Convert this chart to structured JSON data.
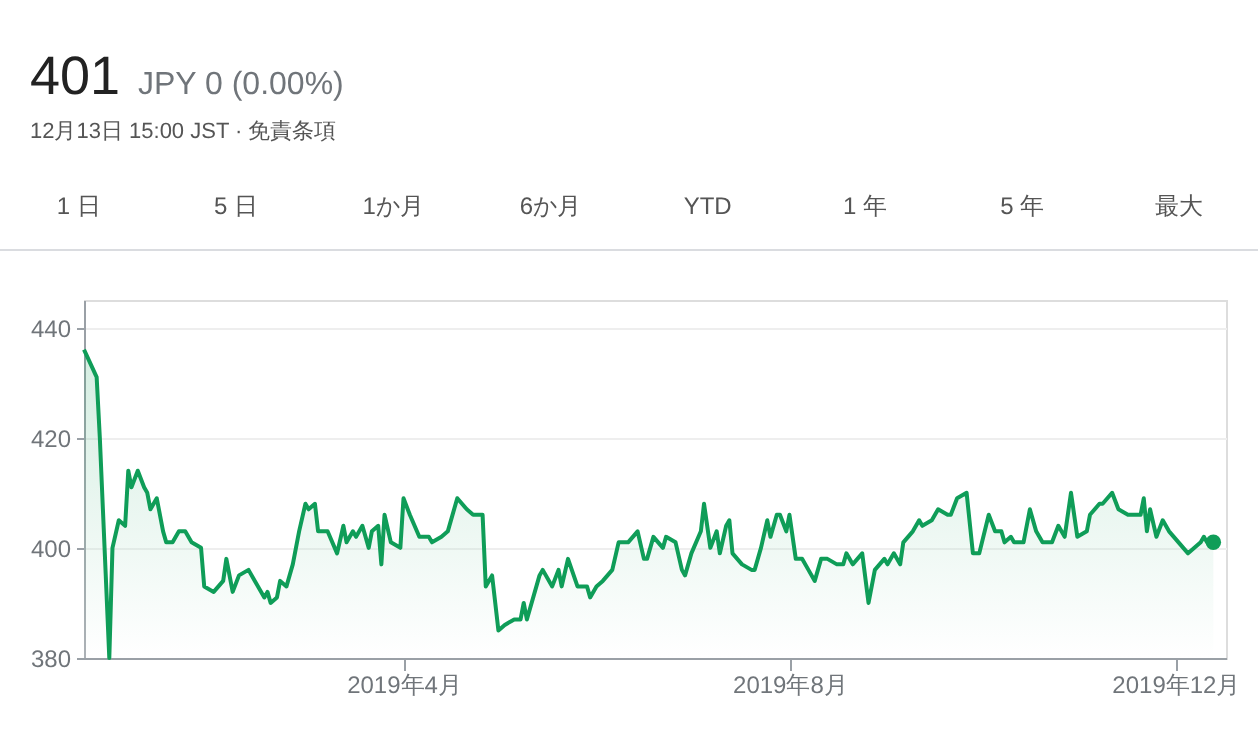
{
  "chart_data": {
    "type": "area",
    "title": "401",
    "subtitle": "JPY 0 (0.00%)",
    "annotations": [
      "12月13日 15:00 JST · 免責条項",
      "1 日",
      "5 日",
      "1か月",
      "6か月",
      "YTD",
      "1 年",
      "5 年",
      "最大"
    ],
    "x": [
      "2018-12-21",
      "2018-12-25",
      "2018-12-26",
      "2018-12-29",
      "2018-12-30",
      "2019-01-01",
      "2019-01-03",
      "2019-01-04",
      "2019-01-05",
      "2019-01-07",
      "2019-01-09",
      "2019-01-10",
      "2019-01-11",
      "2019-01-13",
      "2019-01-15",
      "2019-01-16",
      "2019-01-18",
      "2019-01-20",
      "2019-01-22",
      "2019-01-24",
      "2019-01-27",
      "2019-01-28",
      "2019-01-31",
      "2019-02-03",
      "2019-02-04",
      "2019-02-06",
      "2019-02-08",
      "2019-02-11",
      "2019-02-13",
      "2019-02-16",
      "2019-02-17",
      "2019-02-18",
      "2019-02-20",
      "2019-02-21",
      "2019-02-23",
      "2019-02-25",
      "2019-02-27",
      "2019-03-01",
      "2019-03-02",
      "2019-03-04",
      "2019-03-05",
      "2019-03-08",
      "2019-03-11",
      "2019-03-13",
      "2019-03-14",
      "2019-03-16",
      "2019-03-17",
      "2019-03-19",
      "2019-03-21",
      "2019-03-22",
      "2019-03-24",
      "2019-03-25",
      "2019-03-26",
      "2019-03-28",
      "2019-03-31",
      "2019-04-01",
      "2019-04-03",
      "2019-04-06",
      "2019-04-09",
      "2019-04-10",
      "2019-04-13",
      "2019-04-15",
      "2019-04-18",
      "2019-04-21",
      "2019-04-23",
      "2019-04-26",
      "2019-04-27",
      "2019-04-29",
      "2019-05-01",
      "2019-05-03",
      "2019-05-06",
      "2019-05-08",
      "2019-05-09",
      "2019-05-10",
      "2019-05-14",
      "2019-05-15",
      "2019-05-18",
      "2019-05-20",
      "2019-05-21",
      "2019-05-23",
      "2019-05-26",
      "2019-05-29",
      "2019-05-30",
      "2019-06-01",
      "2019-06-03",
      "2019-06-06",
      "2019-06-08",
      "2019-06-11",
      "2019-06-14",
      "2019-06-16",
      "2019-06-17",
      "2019-06-19",
      "2019-06-22",
      "2019-06-23",
      "2019-06-26",
      "2019-06-28",
      "2019-06-29",
      "2019-07-01",
      "2019-07-04",
      "2019-07-05",
      "2019-07-07",
      "2019-07-09",
      "2019-07-10",
      "2019-07-12",
      "2019-07-13",
      "2019-07-14",
      "2019-07-17",
      "2019-07-20",
      "2019-07-21",
      "2019-07-23",
      "2019-07-25",
      "2019-07-26",
      "2019-07-28",
      "2019-07-29",
      "2019-07-31",
      "2019-08-01",
      "2019-08-03",
      "2019-08-05",
      "2019-08-07",
      "2019-08-09",
      "2019-08-11",
      "2019-08-13",
      "2019-08-16",
      "2019-08-18",
      "2019-08-19",
      "2019-08-21",
      "2019-08-24",
      "2019-08-26",
      "2019-08-28",
      "2019-08-31",
      "2019-09-01",
      "2019-09-03",
      "2019-09-05",
      "2019-09-06",
      "2019-09-09",
      "2019-09-11",
      "2019-09-12",
      "2019-09-15",
      "2019-09-17",
      "2019-09-20",
      "2019-09-21",
      "2019-09-23",
      "2019-09-26",
      "2019-09-28",
      "2019-09-30",
      "2019-10-03",
      "2019-10-05",
      "2019-10-07",
      "2019-10-08",
      "2019-10-10",
      "2019-10-11",
      "2019-10-14",
      "2019-10-16",
      "2019-10-18",
      "2019-10-20",
      "2019-10-23",
      "2019-10-25",
      "2019-10-27",
      "2019-10-29",
      "2019-10-31",
      "2019-11-03",
      "2019-11-04",
      "2019-11-07",
      "2019-11-08",
      "2019-11-11",
      "2019-11-13",
      "2019-11-16",
      "2019-11-20",
      "2019-11-21",
      "2019-11-22",
      "2019-11-23",
      "2019-11-25",
      "2019-11-27",
      "2019-11-29",
      "2019-12-02",
      "2019-12-05",
      "2019-12-07",
      "2019-12-09",
      "2019-12-10",
      "2019-12-11",
      "2019-12-13"
    ],
    "series": [
      {
        "color": "#0f9d58",
        "values": [
          436,
          431,
          420,
          380,
          400,
          405,
          404,
          414,
          411,
          414,
          411,
          410,
          407,
          409,
          403,
          401,
          401,
          403,
          403,
          401,
          400,
          393,
          392,
          394,
          398,
          392,
          395,
          396,
          394,
          391,
          392,
          390,
          391,
          394,
          393,
          397,
          403,
          408,
          407,
          408,
          403,
          403,
          399,
          404,
          401,
          403,
          402,
          404,
          400,
          403,
          404,
          397,
          406,
          401,
          400,
          409,
          406,
          402,
          402,
          401,
          402,
          403,
          409,
          407,
          406,
          406,
          393,
          395,
          385,
          386,
          387,
          387,
          390,
          387,
          395,
          396,
          393,
          396,
          393,
          398,
          393,
          393,
          391,
          393,
          394,
          396,
          401,
          401,
          403,
          398,
          398,
          402,
          400,
          402,
          401,
          396,
          395,
          399,
          403,
          408,
          400,
          403,
          399,
          404,
          405,
          399,
          397,
          396,
          396,
          400,
          405,
          402,
          406,
          406,
          403,
          406,
          398,
          398,
          396,
          394,
          398,
          398,
          397,
          397,
          399,
          397,
          399,
          390,
          396,
          398,
          397,
          399,
          397,
          401,
          403,
          405,
          404,
          405,
          407,
          406,
          406,
          409,
          410,
          399,
          399,
          406,
          403,
          403,
          401,
          402,
          401,
          401,
          407,
          403,
          401,
          401,
          404,
          402,
          410,
          402,
          403,
          406,
          408,
          408,
          410,
          407,
          406,
          406,
          409,
          403,
          407,
          402,
          405,
          403,
          401,
          399,
          400,
          401,
          402,
          401,
          401
        ]
      }
    ],
    "xlim": [
      "2018-12-21",
      "2019-12-17"
    ],
    "xticks": [
      {
        "value": "2019-04-01",
        "label": "2019年4月"
      },
      {
        "value": "2019-08-01",
        "label": "2019年8月"
      },
      {
        "value": "2019-12-01",
        "label": "2019年12月"
      }
    ],
    "ylim": [
      380,
      445
    ],
    "yticks": [
      380,
      400,
      420,
      440
    ],
    "grid": "y"
  }
}
